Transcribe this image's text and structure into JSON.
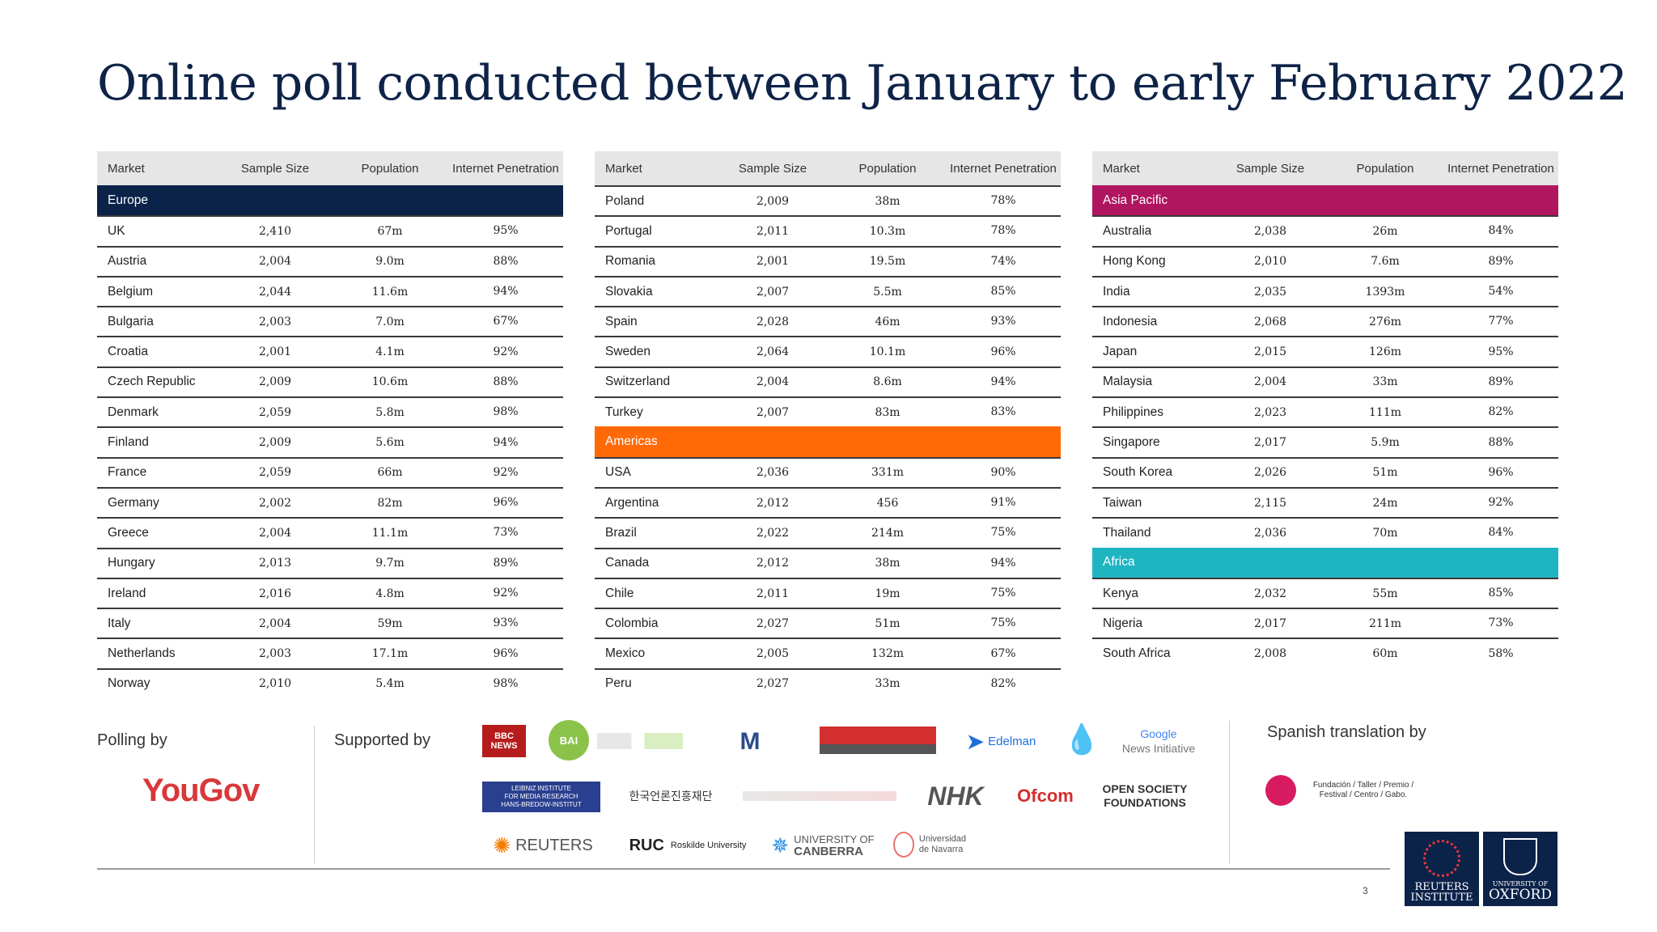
{
  "title": "Online poll conducted between January to early February 2022",
  "columns": {
    "market": "Market",
    "sample": "Sample Size",
    "population": "Population",
    "internet": "Internet Penetration"
  },
  "sections": {
    "europe": "Europe",
    "asia": "Asia Pacific",
    "americas": "Americas",
    "africa": "Africa"
  },
  "colors": {
    "europe": "#0b2249",
    "asia": "#b0155f",
    "americas": "#ff6a07",
    "africa": "#1fb4c2"
  },
  "europe": [
    [
      "UK",
      "2,410",
      "67m",
      "95%"
    ],
    [
      "Austria",
      "2,004",
      "9.0m",
      "88%"
    ],
    [
      "Belgium",
      "2,044",
      "11.6m",
      "94%"
    ],
    [
      "Bulgaria",
      "2,003",
      "7.0m",
      "67%"
    ],
    [
      "Croatia",
      "2,001",
      "4.1m",
      "92%"
    ],
    [
      "Czech Republic",
      "2,009",
      "10.6m",
      "88%"
    ],
    [
      "Denmark",
      "2,059",
      "5.8m",
      "98%"
    ],
    [
      "Finland",
      "2,009",
      "5.6m",
      "94%"
    ],
    [
      "France",
      "2,059",
      "66m",
      "92%"
    ],
    [
      "Germany",
      "2,002",
      "82m",
      "96%"
    ],
    [
      "Greece",
      "2,004",
      "11.1m",
      "73%"
    ],
    [
      "Hungary",
      "2,013",
      "9.7m",
      "89%"
    ],
    [
      "Ireland",
      "2,016",
      "4.8m",
      "92%"
    ],
    [
      "Italy",
      "2,004",
      "59m",
      "93%"
    ],
    [
      "Netherlands",
      "2,003",
      "17.1m",
      "96%"
    ],
    [
      "Norway",
      "2,010",
      "5.4m",
      "98%"
    ]
  ],
  "europe2": [
    [
      "Poland",
      "2,009",
      "38m",
      "78%"
    ],
    [
      "Portugal",
      "2,011",
      "10.3m",
      "78%"
    ],
    [
      "Romania",
      "2,001",
      "19.5m",
      "74%"
    ],
    [
      "Slovakia",
      "2,007",
      "5.5m",
      "85%"
    ],
    [
      "Spain",
      "2,028",
      "46m",
      "93%"
    ],
    [
      "Sweden",
      "2,064",
      "10.1m",
      "96%"
    ],
    [
      "Switzerland",
      "2,004",
      "8.6m",
      "94%"
    ],
    [
      "Turkey",
      "2,007",
      "83m",
      "83%"
    ]
  ],
  "americas": [
    [
      "USA",
      "2,036",
      "331m",
      "90%"
    ],
    [
      "Argentina",
      "2,012",
      "456",
      "91%"
    ],
    [
      "Brazil",
      "2,022",
      "214m",
      "75%"
    ],
    [
      "Canada",
      "2,012",
      "38m",
      "94%"
    ],
    [
      "Chile",
      "2,011",
      "19m",
      "75%"
    ],
    [
      "Colombia",
      "2,027",
      "51m",
      "75%"
    ],
    [
      "Mexico",
      "2,005",
      "132m",
      "67%"
    ],
    [
      "Peru",
      "2,027",
      "33m",
      "82%"
    ]
  ],
  "asia": [
    [
      "Australia",
      "2,038",
      "26m",
      "84%"
    ],
    [
      "Hong Kong",
      "2,010",
      "7.6m",
      "89%"
    ],
    [
      "India",
      "2,035",
      "1393m",
      "54%"
    ],
    [
      "Indonesia",
      "2,068",
      "276m",
      "77%"
    ],
    [
      "Japan",
      "2,015",
      "126m",
      "95%"
    ],
    [
      "Malaysia",
      "2,004",
      "33m",
      "89%"
    ],
    [
      "Philippines",
      "2,023",
      "111m",
      "82%"
    ],
    [
      "Singapore",
      "2,017",
      "5.9m",
      "88%"
    ],
    [
      "South Korea",
      "2,026",
      "51m",
      "96%"
    ],
    [
      "Taiwan",
      "2,115",
      "24m",
      "92%"
    ],
    [
      "Thailand",
      "2,036",
      "70m",
      "84%"
    ]
  ],
  "africa": [
    [
      "Kenya",
      "2,032",
      "55m",
      "85%"
    ],
    [
      "Nigeria",
      "2,017",
      "211m",
      "73%"
    ],
    [
      "South Africa",
      "2,008",
      "60m",
      "58%"
    ]
  ],
  "footer": {
    "polling_by": "Polling by",
    "supported_by": "Supported by",
    "spanish_translation_by": "Spanish translation by",
    "yougov": "YouGov",
    "page_number": "3"
  },
  "logos": {
    "bbc_top": "BBC",
    "bbc_bottom": "NEWS",
    "bai": "BAI",
    "edelman": "Edelman",
    "google": "Google",
    "google_sub": "News Initiative",
    "leibniz_1": "LEIBNIZ INSTITUTE",
    "leibniz_2": "FOR MEDIA RESEARCH",
    "leibniz_3": "HANS-BREDOW-INSTITUT",
    "korea": "한국언론진흥재단",
    "nhk": "NHK",
    "ofcom": "Ofcom",
    "open_society_1": "OPEN SOCIETY",
    "open_society_2": "FOUNDATIONS",
    "reuters": "REUTERS",
    "ruc": "RUC",
    "roskilde": "Roskilde University",
    "canberra_1": "UNIVERSITY OF",
    "canberra_2": "CANBERRA",
    "navarra_1": "Universidad",
    "navarra_2": "de Navarra",
    "gabo": "Fundación / Taller / Premio / Festival / Centro / Gabo.",
    "reuters_inst_1": "REUTERS",
    "reuters_inst_2": "INSTITUTE",
    "oxford_1": "UNIVERSITY OF",
    "oxford_2": "OXFORD"
  }
}
